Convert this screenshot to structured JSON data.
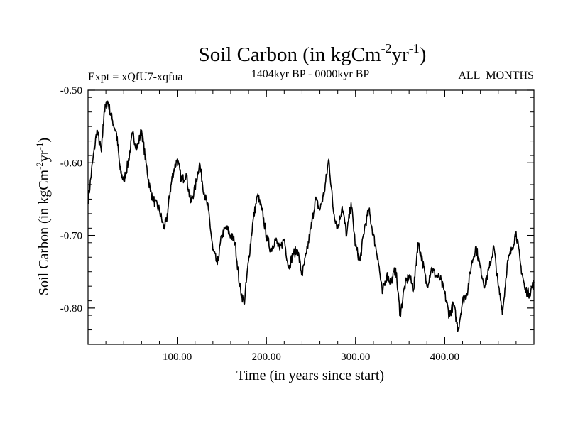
{
  "chart_data": {
    "type": "line",
    "title_main": "Soil Carbon (in kgCm",
    "title_sup1": "-2",
    "title_mid": "yr",
    "title_sup2": "-1",
    "title_end": ")",
    "subtitle_left": "Expt = xQfU7-xqfua",
    "subtitle_center": "1404kyr BP - 0000kyr BP",
    "subtitle_right": "ALL_MONTHS",
    "xlabel": "Time (in years since start)",
    "ylabel_main": "Soil Carbon (in kgCm",
    "ylabel_sup1": "-2",
    "ylabel_mid": "yr",
    "ylabel_sup2": "-1",
    "ylabel_end": ")",
    "xlim": [
      0,
      500
    ],
    "ylim": [
      -0.85,
      -0.5
    ],
    "x_ticks": [
      {
        "value": 100,
        "label": "100.00"
      },
      {
        "value": 200,
        "label": "200.00"
      },
      {
        "value": 300,
        "label": "300.00"
      },
      {
        "value": 400,
        "label": "400.00"
      }
    ],
    "y_ticks": [
      {
        "value": -0.5,
        "label": "-0.50"
      },
      {
        "value": -0.6,
        "label": "-0.60"
      },
      {
        "value": -0.7,
        "label": "-0.70"
      },
      {
        "value": -0.8,
        "label": "-0.80"
      }
    ],
    "line_color": "#000000",
    "series": [
      {
        "name": "Soil Carbon",
        "x": [
          0,
          5,
          10,
          15,
          18,
          22,
          27,
          32,
          36,
          40,
          45,
          50,
          55,
          60,
          65,
          70,
          75,
          80,
          85,
          88,
          92,
          95,
          100,
          105,
          110,
          115,
          120,
          125,
          130,
          135,
          140,
          145,
          150,
          155,
          160,
          165,
          170,
          175,
          180,
          185,
          190,
          195,
          200,
          205,
          210,
          215,
          220,
          225,
          230,
          235,
          240,
          245,
          250,
          255,
          260,
          265,
          270,
          275,
          280,
          285,
          290,
          295,
          300,
          305,
          310,
          315,
          320,
          325,
          330,
          335,
          340,
          345,
          350,
          355,
          360,
          365,
          370,
          375,
          380,
          385,
          390,
          395,
          400,
          405,
          410,
          415,
          420,
          425,
          430,
          435,
          440,
          445,
          450,
          455,
          460,
          465,
          470,
          475,
          480,
          485,
          490,
          495,
          500
        ],
        "y": [
          -0.655,
          -0.6,
          -0.555,
          -0.585,
          -0.53,
          -0.515,
          -0.54,
          -0.56,
          -0.61,
          -0.625,
          -0.6,
          -0.56,
          -0.58,
          -0.555,
          -0.6,
          -0.64,
          -0.655,
          -0.665,
          -0.69,
          -0.68,
          -0.64,
          -0.615,
          -0.595,
          -0.625,
          -0.615,
          -0.655,
          -0.635,
          -0.6,
          -0.64,
          -0.665,
          -0.72,
          -0.74,
          -0.7,
          -0.69,
          -0.7,
          -0.71,
          -0.77,
          -0.795,
          -0.735,
          -0.68,
          -0.645,
          -0.665,
          -0.7,
          -0.72,
          -0.705,
          -0.72,
          -0.705,
          -0.745,
          -0.725,
          -0.72,
          -0.755,
          -0.725,
          -0.69,
          -0.65,
          -0.665,
          -0.64,
          -0.595,
          -0.665,
          -0.69,
          -0.66,
          -0.7,
          -0.655,
          -0.715,
          -0.735,
          -0.69,
          -0.665,
          -0.7,
          -0.73,
          -0.78,
          -0.755,
          -0.765,
          -0.745,
          -0.81,
          -0.77,
          -0.755,
          -0.775,
          -0.71,
          -0.735,
          -0.77,
          -0.745,
          -0.755,
          -0.76,
          -0.78,
          -0.81,
          -0.795,
          -0.83,
          -0.79,
          -0.78,
          -0.74,
          -0.715,
          -0.745,
          -0.77,
          -0.745,
          -0.715,
          -0.77,
          -0.805,
          -0.74,
          -0.72,
          -0.695,
          -0.74,
          -0.775,
          -0.78,
          -0.765
        ]
      }
    ]
  }
}
